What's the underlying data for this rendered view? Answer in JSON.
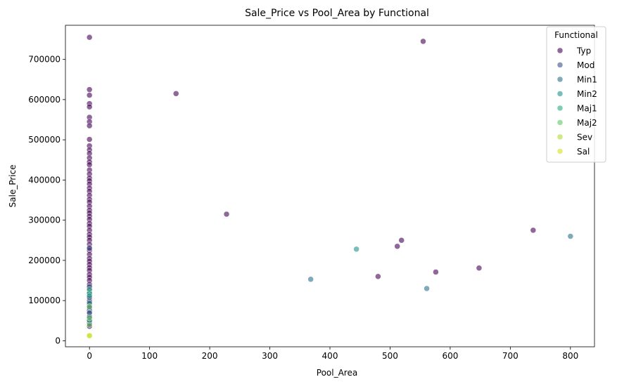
{
  "chart_data": {
    "type": "scatter",
    "title": "Sale_Price vs Pool_Area by Functional",
    "xlabel": "Pool_Area",
    "ylabel": "Sale_Price",
    "xlim": [
      -40,
      840
    ],
    "ylim": [
      -15000,
      785000
    ],
    "xticks": [
      0,
      100,
      200,
      300,
      400,
      500,
      600,
      700,
      800
    ],
    "yticks": [
      0,
      100000,
      200000,
      300000,
      400000,
      500000,
      600000,
      700000
    ],
    "grid": false,
    "legend": {
      "title": "Functional",
      "placement": "top-right",
      "entries": [
        {
          "name": "Typ",
          "color": "#440154"
        },
        {
          "name": "Mod",
          "color": "#3b528b"
        },
        {
          "name": "Min1",
          "color": "#2c728e"
        },
        {
          "name": "Min2",
          "color": "#21918c"
        },
        {
          "name": "Maj1",
          "color": "#28ae80"
        },
        {
          "name": "Maj2",
          "color": "#5ec962"
        },
        {
          "name": "Sev",
          "color": "#addc30"
        },
        {
          "name": "Sal",
          "color": "#d2e21b"
        }
      ]
    },
    "series": [
      {
        "name": "Typ",
        "points": [
          [
            0,
            755000
          ],
          [
            0,
            625000
          ],
          [
            0,
            611000
          ],
          [
            0,
            590000
          ],
          [
            0,
            582000
          ],
          [
            0,
            556000
          ],
          [
            0,
            545000
          ],
          [
            0,
            535000
          ],
          [
            0,
            501000
          ],
          [
            0,
            485000
          ],
          [
            0,
            475000
          ],
          [
            0,
            466000
          ],
          [
            0,
            455000
          ],
          [
            0,
            445000
          ],
          [
            0,
            438000
          ],
          [
            0,
            425000
          ],
          [
            0,
            415000
          ],
          [
            0,
            405000
          ],
          [
            0,
            398000
          ],
          [
            0,
            390000
          ],
          [
            0,
            380000
          ],
          [
            0,
            372000
          ],
          [
            0,
            362000
          ],
          [
            0,
            352000
          ],
          [
            0,
            345000
          ],
          [
            0,
            335000
          ],
          [
            0,
            325000
          ],
          [
            0,
            318000
          ],
          [
            0,
            310000
          ],
          [
            0,
            302000
          ],
          [
            0,
            292000
          ],
          [
            0,
            285000
          ],
          [
            0,
            275000
          ],
          [
            0,
            265000
          ],
          [
            0,
            258000
          ],
          [
            0,
            250000
          ],
          [
            0,
            240000
          ],
          [
            0,
            232000
          ],
          [
            0,
            225000
          ],
          [
            0,
            215000
          ],
          [
            0,
            205000
          ],
          [
            0,
            198000
          ],
          [
            0,
            190000
          ],
          [
            0,
            182000
          ],
          [
            0,
            175000
          ],
          [
            0,
            165000
          ],
          [
            0,
            158000
          ],
          [
            0,
            150000
          ],
          [
            0,
            140000
          ],
          [
            0,
            132000
          ],
          [
            0,
            125000
          ],
          [
            0,
            115000
          ],
          [
            0,
            108000
          ],
          [
            0,
            100000
          ],
          [
            0,
            92000
          ],
          [
            0,
            85000
          ],
          [
            0,
            76000
          ],
          [
            0,
            68000
          ],
          [
            0,
            60000
          ],
          [
            0,
            52000
          ],
          [
            0,
            44000
          ],
          [
            0,
            36000
          ],
          [
            555,
            745000
          ],
          [
            144,
            615000
          ],
          [
            228,
            315000
          ],
          [
            519,
            250000
          ],
          [
            512,
            235000
          ],
          [
            738,
            275000
          ],
          [
            480,
            160000
          ],
          [
            576,
            171000
          ],
          [
            648,
            181000
          ]
        ]
      },
      {
        "name": "Mod",
        "points": [
          [
            0,
            230000
          ],
          [
            0,
            135000
          ],
          [
            0,
            108000
          ],
          [
            0,
            82000
          ],
          [
            0,
            60000
          ]
        ]
      },
      {
        "name": "Min1",
        "points": [
          [
            368,
            153000
          ],
          [
            561,
            130000
          ],
          [
            800,
            260000
          ],
          [
            0,
            120000
          ],
          [
            0,
            70000
          ]
        ]
      },
      {
        "name": "Min2",
        "points": [
          [
            444,
            228000
          ],
          [
            0,
            118000
          ],
          [
            0,
            95000
          ],
          [
            0,
            50000
          ]
        ]
      },
      {
        "name": "Maj1",
        "points": [
          [
            0,
            128000
          ],
          [
            0,
            112000
          ]
        ]
      },
      {
        "name": "Maj2",
        "points": [
          [
            0,
            85000
          ],
          [
            0,
            57000
          ],
          [
            0,
            40000
          ]
        ]
      },
      {
        "name": "Sev",
        "points": [
          [
            0,
            13000
          ]
        ]
      },
      {
        "name": "Sal",
        "points": [
          [
            0,
            12500
          ]
        ]
      }
    ]
  }
}
